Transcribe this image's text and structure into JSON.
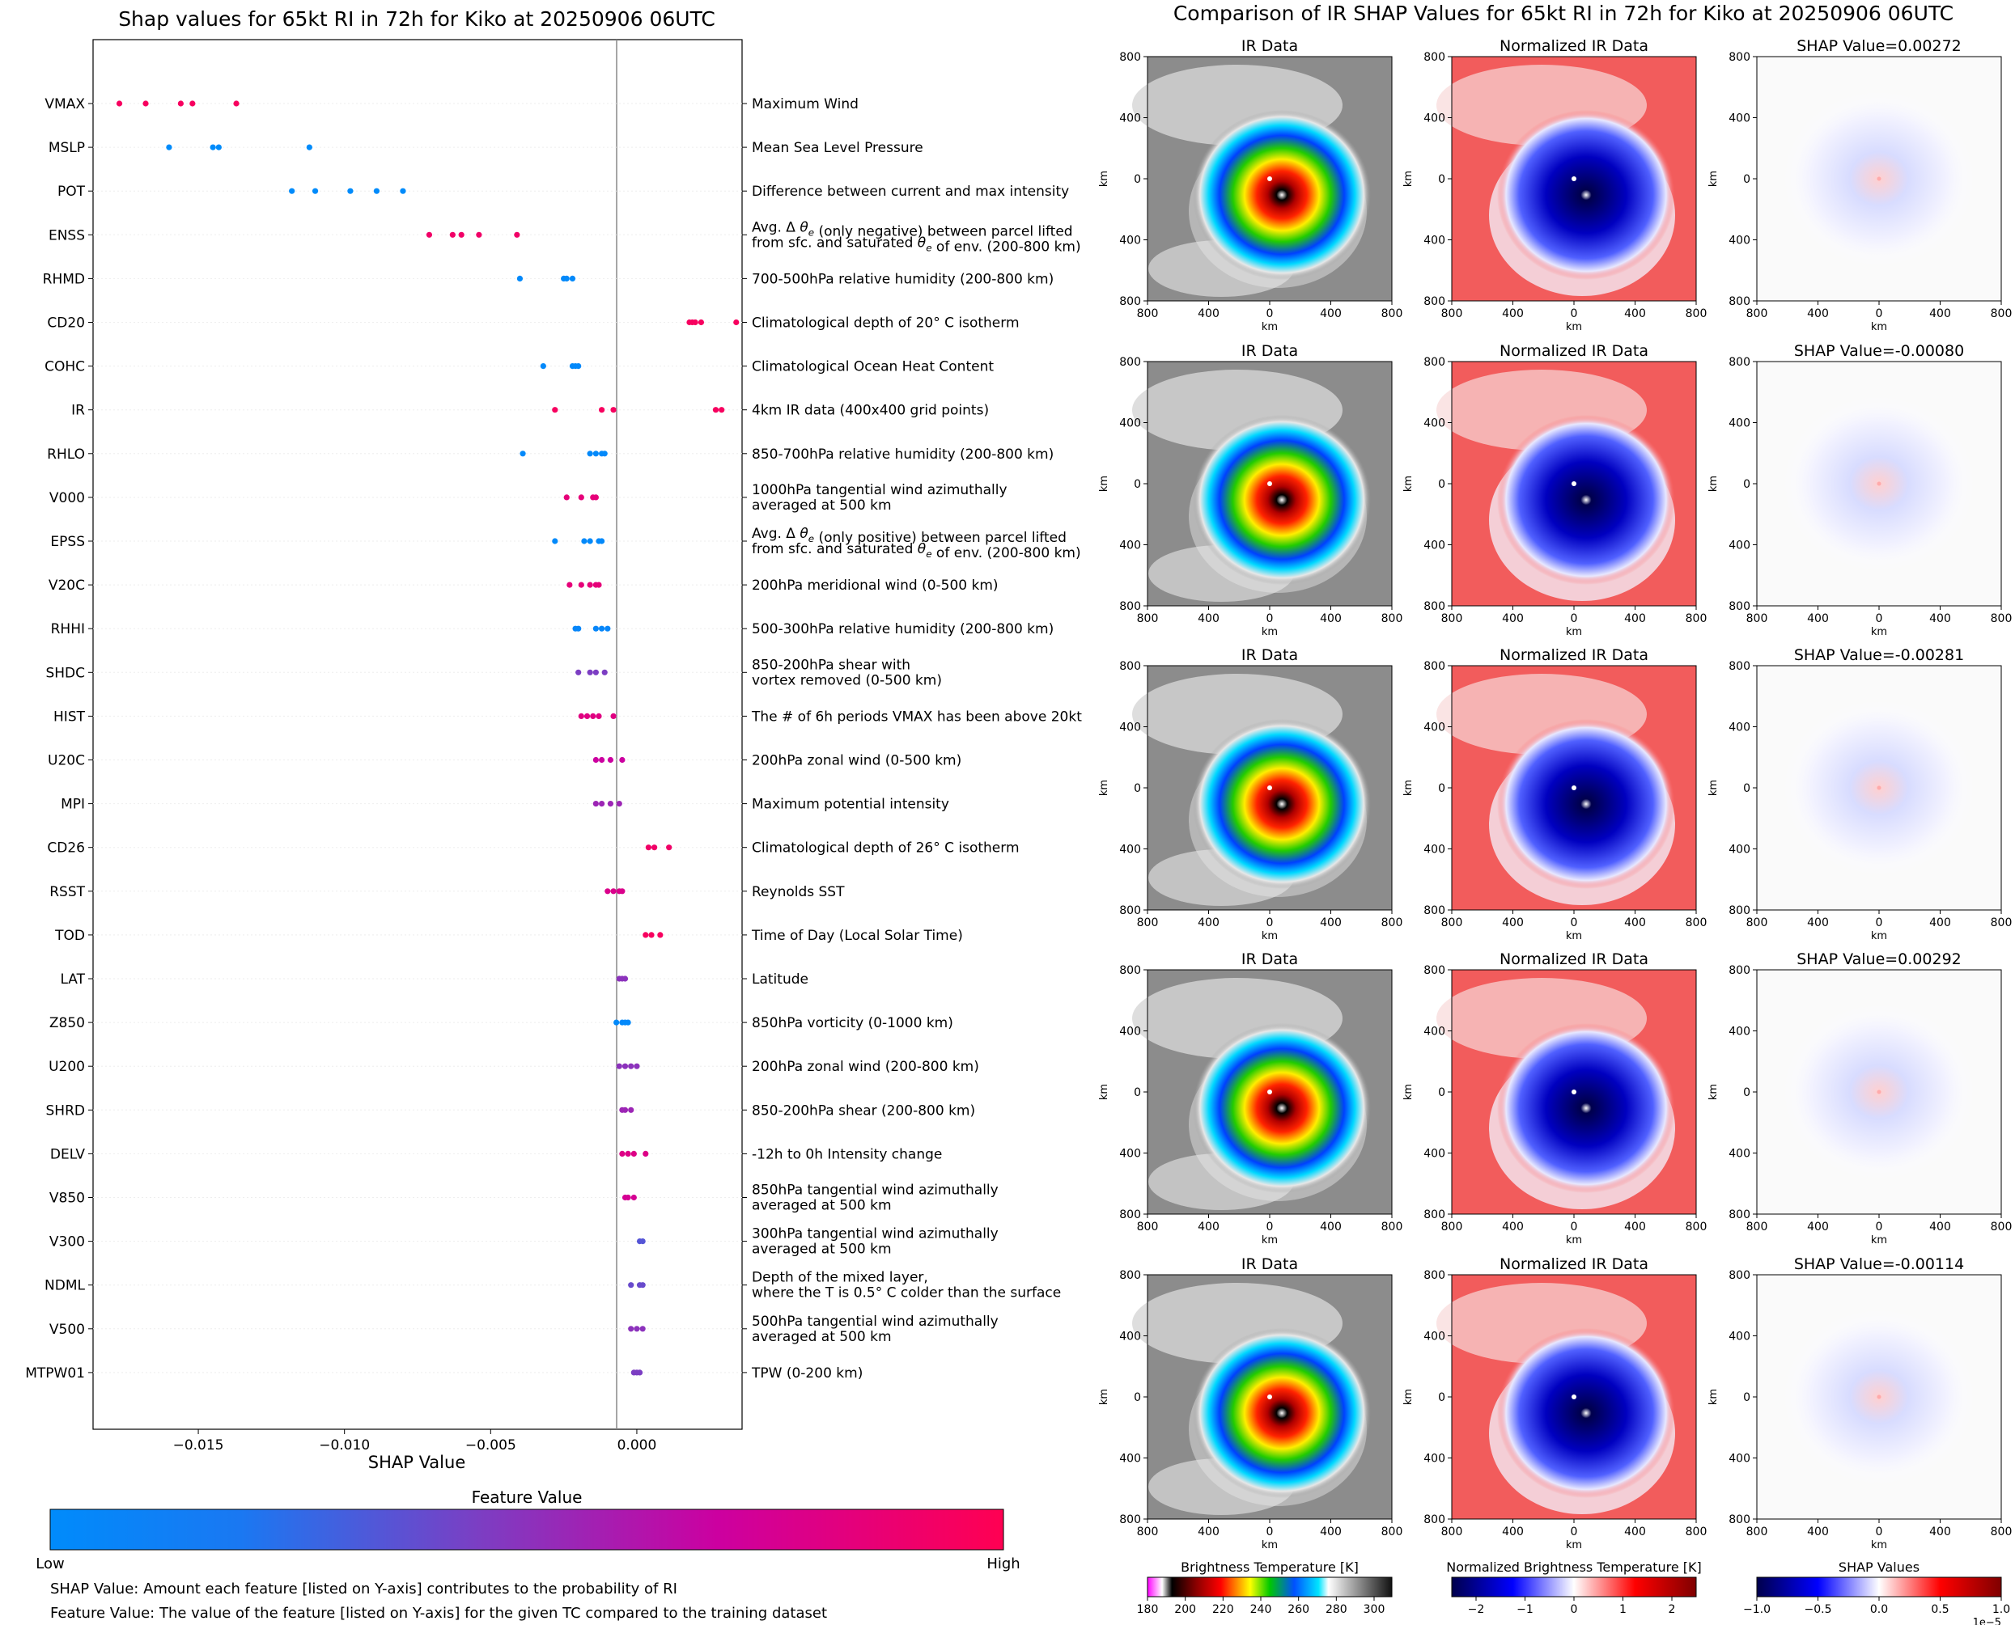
{
  "left_chart": {
    "title": "Shap values for 65kt RI in 72h for Kiko at 20250906 06UTC",
    "xlabel": "SHAP Value",
    "colorbar_label": "Feature Value",
    "low_label": "Low",
    "high_label": "High",
    "caption_shap": "SHAP Value: Amount each feature [listed on Y-axis] contributes to the probability of RI",
    "caption_feature": "Feature Value: The value of the feature [listed on Y-axis] for the given TC compared to the training dataset"
  },
  "right_panel": {
    "title": "Comparison of IR SHAP Values for 65kt RI in 72h for Kiko at 20250906 06UTC",
    "col_titles": [
      "IR Data",
      "Normalized IR Data"
    ],
    "shap_titles": [
      "SHAP Value=0.00272",
      "SHAP Value=-0.00080",
      "SHAP Value=-0.00281",
      "SHAP Value=0.00292",
      "SHAP Value=-0.00114"
    ],
    "axis_label": "km",
    "ticks": [
      "800",
      "400",
      "0",
      "400",
      "800"
    ],
    "colorbars": [
      {
        "label": "Brightness Temperature [K]",
        "ticks": [
          "180",
          "200",
          "220",
          "240",
          "260",
          "280",
          "300"
        ]
      },
      {
        "label": "Normalized Brightness Temperature [K]",
        "ticks": [
          "−2",
          "−1",
          "0",
          "1",
          "2"
        ]
      },
      {
        "label": "SHAP Values",
        "ticks": [
          "−1.0",
          "−0.5",
          "0.0",
          "0.5",
          "1.0"
        ],
        "scale": "1e−5"
      }
    ]
  },
  "chart_data": {
    "type": "scatter",
    "title": "Shap values for 65kt RI in 72h for Kiko at 20250906 06UTC",
    "xlabel": "SHAP Value",
    "xlim": [
      -0.0186,
      0.0036
    ],
    "xticks": [
      -0.015,
      -0.01,
      -0.005,
      0.0
    ],
    "xtick_labels": [
      "−0.015",
      "−0.010",
      "−0.005",
      "0.000"
    ],
    "features": [
      {
        "code": "VMAX",
        "desc": [
          "Maximum Wind"
        ],
        "points": [
          -0.0177,
          -0.0168,
          -0.0156,
          -0.0152,
          -0.0137
        ],
        "fv": [
          0.95,
          0.95,
          0.95,
          0.95,
          0.95
        ]
      },
      {
        "code": "MSLP",
        "desc": [
          "Mean Sea Level Pressure"
        ],
        "points": [
          -0.016,
          -0.0145,
          -0.0143,
          -0.0112
        ],
        "fv": [
          0.0,
          0.0,
          0.0,
          0.0
        ]
      },
      {
        "code": "POT",
        "desc": [
          "Difference between current and max intensity"
        ],
        "points": [
          -0.0118,
          -0.011,
          -0.0098,
          -0.0089,
          -0.008
        ],
        "fv": [
          0.0,
          0.0,
          0.0,
          0.0,
          0.0
        ]
      },
      {
        "code": "ENSS",
        "desc": [
          "Avg. Δ θe (only negative) between parcel lifted",
          "from sfc. and saturated θe of env. (200-800 km)"
        ],
        "points": [
          -0.0071,
          -0.0063,
          -0.006,
          -0.0054,
          -0.0041
        ],
        "fv": [
          0.92,
          0.92,
          0.92,
          0.92,
          0.92
        ]
      },
      {
        "code": "RHMD",
        "desc": [
          "700-500hPa relative humidity (200-800 km)"
        ],
        "points": [
          -0.004,
          -0.0025,
          -0.0024,
          -0.0022
        ],
        "fv": [
          0.02,
          0.02,
          0.02,
          0.02
        ]
      },
      {
        "code": "CD20",
        "desc": [
          "Climatological depth of 20° C isotherm"
        ],
        "points": [
          0.0018,
          0.0019,
          0.002,
          0.0022,
          0.0034
        ],
        "fv": [
          0.95,
          0.95,
          0.95,
          0.95,
          0.95
        ]
      },
      {
        "code": "COHC",
        "desc": [
          "Climatological Ocean Heat Content"
        ],
        "points": [
          -0.0032,
          -0.0022,
          -0.0021,
          -0.002
        ],
        "fv": [
          0.02,
          0.02,
          0.02,
          0.02
        ]
      },
      {
        "code": "IR",
        "desc": [
          "4km IR data (400x400 grid points)"
        ],
        "points": [
          -0.0028,
          -0.0012,
          -0.0008,
          0.0027,
          0.0029
        ],
        "fv": [
          0.95,
          0.95,
          0.95,
          0.95,
          0.95
        ]
      },
      {
        "code": "RHLO",
        "desc": [
          "850-700hPa relative humidity (200-800 km)"
        ],
        "points": [
          -0.0039,
          -0.0016,
          -0.0014,
          -0.0012,
          -0.0011
        ],
        "fv": [
          0.02,
          0.02,
          0.02,
          0.02,
          0.02
        ]
      },
      {
        "code": "V000",
        "desc": [
          "1000hPa tangential wind azimuthally",
          "averaged at 500 km"
        ],
        "points": [
          -0.0024,
          -0.0019,
          -0.0015,
          -0.0014
        ],
        "fv": [
          0.85,
          0.85,
          0.85,
          0.85
        ]
      },
      {
        "code": "EPSS",
        "desc": [
          "Avg. Δ θe (only positive) between parcel lifted",
          "from sfc. and saturated θe of env. (200-800 km)"
        ],
        "points": [
          -0.0028,
          -0.0018,
          -0.0016,
          -0.0013,
          -0.0012
        ],
        "fv": [
          0.02,
          0.02,
          0.02,
          0.02,
          0.02
        ]
      },
      {
        "code": "V20C",
        "desc": [
          "200hPa meridional wind (0-500 km)"
        ],
        "points": [
          -0.0023,
          -0.0019,
          -0.0016,
          -0.0014,
          -0.0013
        ],
        "fv": [
          0.85,
          0.85,
          0.85,
          0.85,
          0.85
        ]
      },
      {
        "code": "RHHI",
        "desc": [
          "500-300hPa relative humidity (200-800 km)"
        ],
        "points": [
          -0.0021,
          -0.002,
          -0.0014,
          -0.0012,
          -0.001
        ],
        "fv": [
          0.05,
          0.05,
          0.05,
          0.05,
          0.05
        ]
      },
      {
        "code": "SHDC",
        "desc": [
          "850-200hPa shear with",
          "vortex removed (0-500 km)"
        ],
        "points": [
          -0.002,
          -0.0016,
          -0.0014,
          -0.0011
        ],
        "fv": [
          0.45,
          0.45,
          0.45,
          0.45
        ]
      },
      {
        "code": "HIST",
        "desc": [
          "The # of 6h periods VMAX has been above 20kt"
        ],
        "points": [
          -0.0019,
          -0.0017,
          -0.0015,
          -0.0013,
          -0.0008
        ],
        "fv": [
          0.82,
          0.82,
          0.82,
          0.82,
          0.82
        ]
      },
      {
        "code": "U20C",
        "desc": [
          "200hPa zonal wind (0-500 km)"
        ],
        "points": [
          -0.0014,
          -0.0012,
          -0.0009,
          -0.0005
        ],
        "fv": [
          0.7,
          0.7,
          0.7,
          0.7
        ]
      },
      {
        "code": "MPI",
        "desc": [
          "Maximum potential intensity"
        ],
        "points": [
          -0.0014,
          -0.0012,
          -0.0009,
          -0.0006
        ],
        "fv": [
          0.55,
          0.55,
          0.55,
          0.55
        ]
      },
      {
        "code": "CD26",
        "desc": [
          "Climatological depth of 26° C isotherm"
        ],
        "points": [
          0.0004,
          0.0006,
          0.0011
        ],
        "fv": [
          0.92,
          0.92,
          0.92
        ]
      },
      {
        "code": "RSST",
        "desc": [
          "Reynolds SST"
        ],
        "points": [
          -0.001,
          -0.0008,
          -0.0006,
          -0.0005
        ],
        "fv": [
          0.78,
          0.78,
          0.78,
          0.78
        ]
      },
      {
        "code": "TOD",
        "desc": [
          "Time of Day (Local Solar Time)"
        ],
        "points": [
          0.0003,
          0.0005,
          0.0008
        ],
        "fv": [
          0.95,
          0.95,
          0.95
        ]
      },
      {
        "code": "LAT",
        "desc": [
          "Latitude"
        ],
        "points": [
          -0.0006,
          -0.0005,
          -0.0004
        ],
        "fv": [
          0.5,
          0.5,
          0.5
        ]
      },
      {
        "code": "Z850",
        "desc": [
          "850hPa vorticity (0-1000 km)"
        ],
        "points": [
          -0.0007,
          -0.0005,
          -0.0004,
          -0.0003
        ],
        "fv": [
          0.02,
          0.02,
          0.02,
          0.02
        ]
      },
      {
        "code": "U200",
        "desc": [
          "200hPa zonal wind (200-800 km)"
        ],
        "points": [
          -0.0006,
          -0.0004,
          -0.0002,
          0.0
        ],
        "fv": [
          0.5,
          0.5,
          0.5,
          0.5
        ]
      },
      {
        "code": "SHRD",
        "desc": [
          "850-200hPa shear (200-800 km)"
        ],
        "points": [
          -0.0005,
          -0.0004,
          -0.0002
        ],
        "fv": [
          0.55,
          0.55,
          0.55
        ]
      },
      {
        "code": "DELV",
        "desc": [
          "-12h to 0h Intensity change"
        ],
        "points": [
          -0.0005,
          -0.0003,
          -0.0001,
          0.0003
        ],
        "fv": [
          0.8,
          0.8,
          0.8,
          0.8
        ]
      },
      {
        "code": "V850",
        "desc": [
          "850hPa tangential wind azimuthally",
          "averaged at 500 km"
        ],
        "points": [
          -0.0004,
          -0.0003,
          -0.0001
        ],
        "fv": [
          0.75,
          0.75,
          0.75
        ]
      },
      {
        "code": "V300",
        "desc": [
          "300hPa tangential wind azimuthally",
          "averaged at 500 km"
        ],
        "points": [
          0.0001,
          0.0002
        ],
        "fv": [
          0.35,
          0.35
        ]
      },
      {
        "code": "NDML",
        "desc": [
          "Depth of the mixed layer,",
          "where the T is 0.5° C colder than the surface"
        ],
        "points": [
          -0.0002,
          0.0001,
          0.0002
        ],
        "fv": [
          0.4,
          0.4,
          0.4
        ]
      },
      {
        "code": "V500",
        "desc": [
          "500hPa tangential wind azimuthally",
          "averaged at 500 km"
        ],
        "points": [
          -0.0002,
          0.0,
          0.0002
        ],
        "fv": [
          0.5,
          0.5,
          0.5
        ]
      },
      {
        "code": "MTPW01",
        "desc": [
          "TPW (0-200 km)"
        ],
        "points": [
          -0.0001,
          0.0,
          0.0001
        ],
        "fv": [
          0.45,
          0.45,
          0.45
        ]
      }
    ]
  },
  "colors": {
    "low": "#008bfb",
    "mid": "#7c3ec3",
    "high": "#ff0052"
  }
}
